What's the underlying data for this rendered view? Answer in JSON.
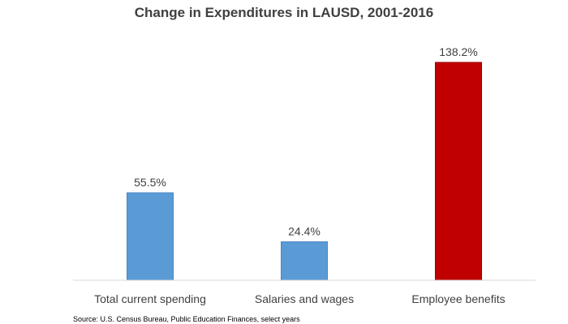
{
  "chart_data": {
    "type": "bar",
    "title": "Change in Expenditures in LAUSD, 2001-2016",
    "categories": [
      "Total current spending",
      "Salaries and wages",
      "Employee benefits"
    ],
    "values": [
      55.5,
      24.4,
      138.2
    ],
    "data_labels": [
      "55.5%",
      "24.4%",
      "138.2%"
    ],
    "colors": [
      "#5b9bd5",
      "#5b9bd5",
      "#c00000"
    ],
    "xlabel": "",
    "ylabel": "",
    "ylim": [
      0,
      140
    ],
    "grid": false,
    "legend": "none",
    "source": "Source: U.S. Census Bureau, Public Education Finances, select years"
  }
}
